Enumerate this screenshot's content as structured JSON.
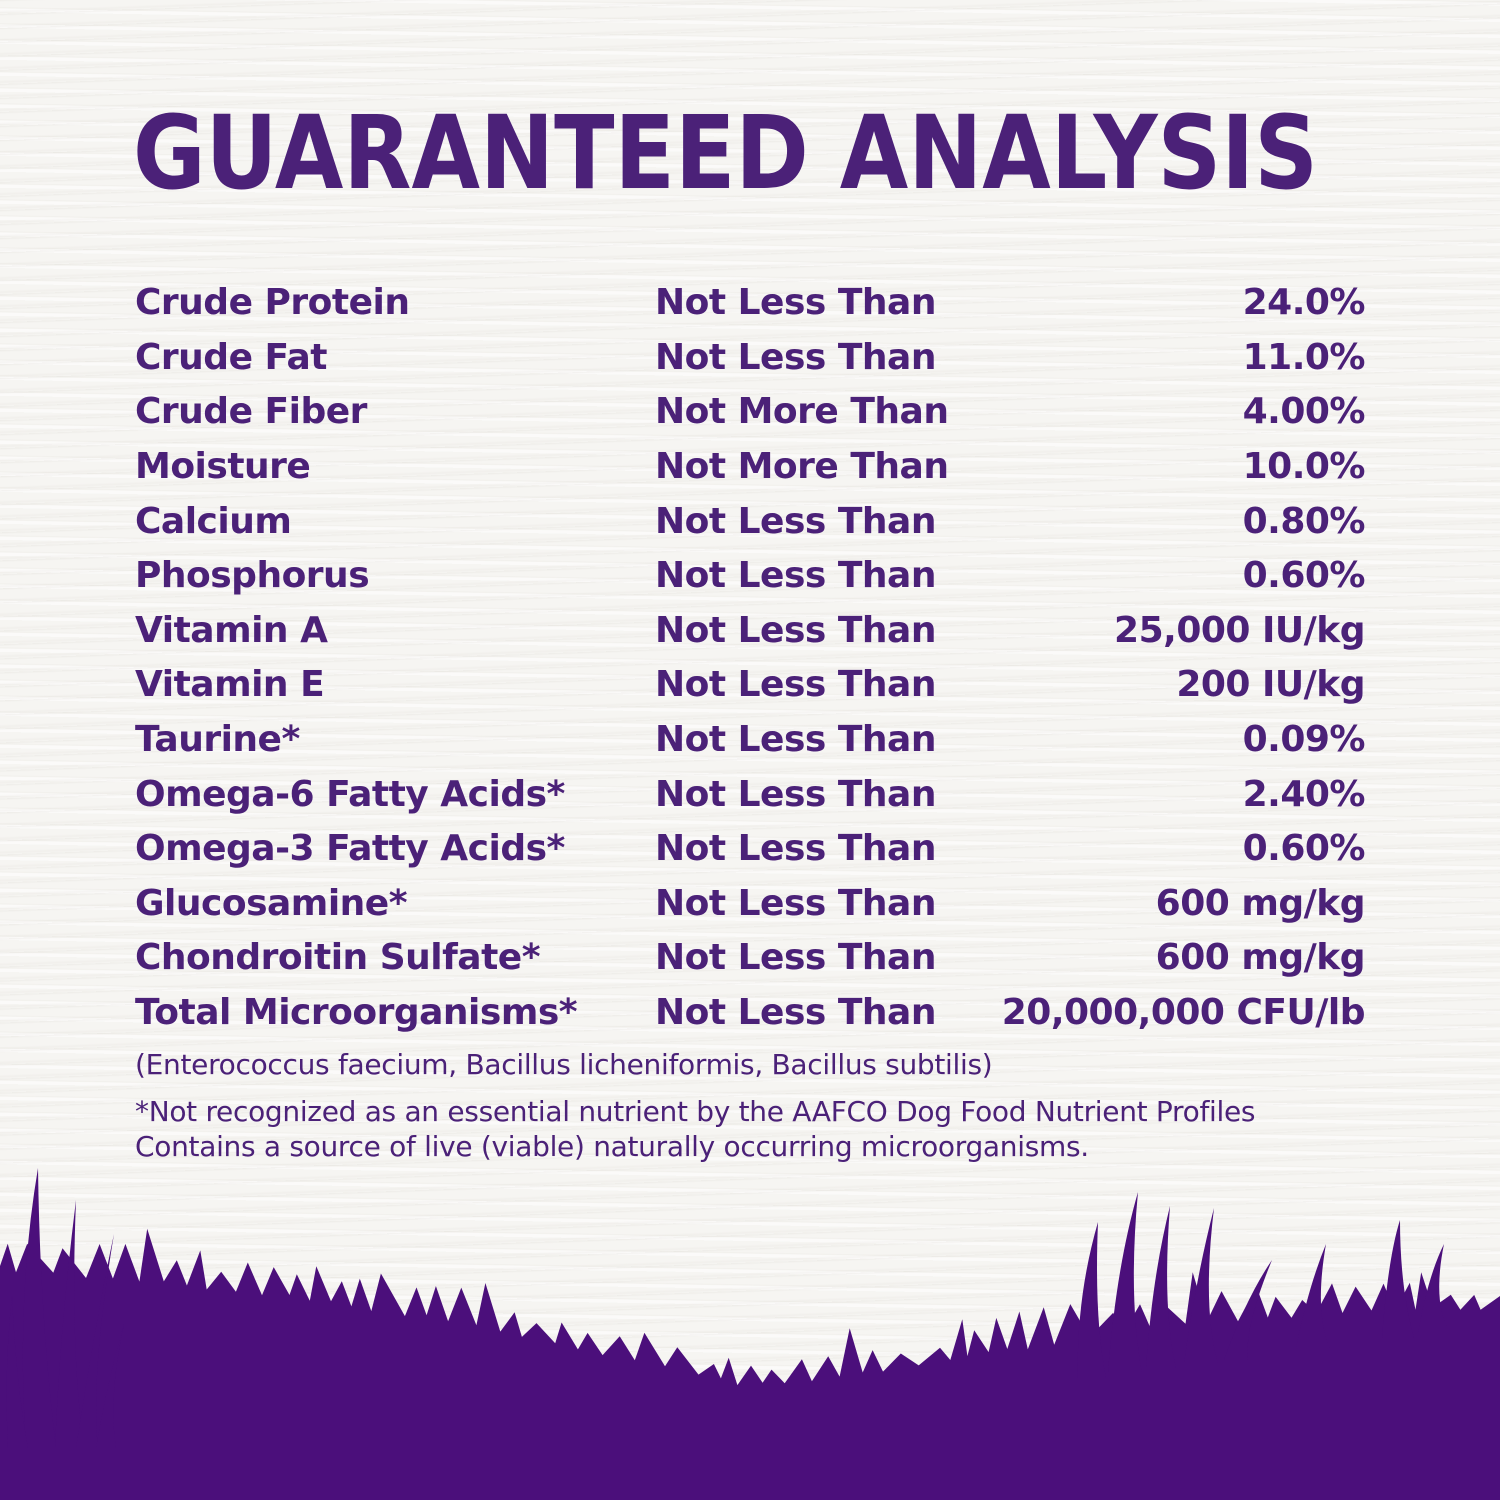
{
  "title": "GUARANTEED ANALYSIS",
  "colors": {
    "text_purple": "#4B2178",
    "grass_purple": "#4B0F7B",
    "background": "#F6F5F2"
  },
  "table": {
    "rows": [
      {
        "nutrient": "Crude Protein",
        "qualifier": "Not Less Than",
        "value": "24.0%"
      },
      {
        "nutrient": "Crude Fat",
        "qualifier": "Not Less Than",
        "value": "11.0%"
      },
      {
        "nutrient": "Crude Fiber",
        "qualifier": "Not More Than",
        "value": "4.00%"
      },
      {
        "nutrient": "Moisture",
        "qualifier": "Not More Than",
        "value": "10.0%"
      },
      {
        "nutrient": "Calcium",
        "qualifier": "Not Less Than",
        "value": "0.80%"
      },
      {
        "nutrient": "Phosphorus",
        "qualifier": "Not Less Than",
        "value": "0.60%"
      },
      {
        "nutrient": "Vitamin A",
        "qualifier": "Not Less Than",
        "value": "25,000 IU/kg"
      },
      {
        "nutrient": "Vitamin E",
        "qualifier": "Not Less Than",
        "value": "200 IU/kg"
      },
      {
        "nutrient": "Taurine*",
        "qualifier": "Not Less Than",
        "value": "0.09%"
      },
      {
        "nutrient": "Omega-6 Fatty Acids*",
        "qualifier": "Not Less Than",
        "value": "2.40%"
      },
      {
        "nutrient": "Omega-3 Fatty Acids*",
        "qualifier": "Not Less Than",
        "value": "0.60%"
      },
      {
        "nutrient": "Glucosamine*",
        "qualifier": "Not Less Than",
        "value": "600 mg/kg"
      },
      {
        "nutrient": "Chondroitin Sulfate*",
        "qualifier": "Not Less Than",
        "value": "600 mg/kg"
      },
      {
        "nutrient": "Total Microorganisms*",
        "qualifier": "Not Less Than",
        "value": "20,000,000 CFU/lb"
      }
    ]
  },
  "species_note": "(Enterococcus faecium, Bacillus licheniformis, Bacillus subtilis)",
  "footnote": {
    "line1": "*Not recognized as an essential nutrient by the AAFCO Dog Food Nutrient Profiles",
    "line2": "Contains a source of live (viable) naturally occurring microorganisms."
  }
}
